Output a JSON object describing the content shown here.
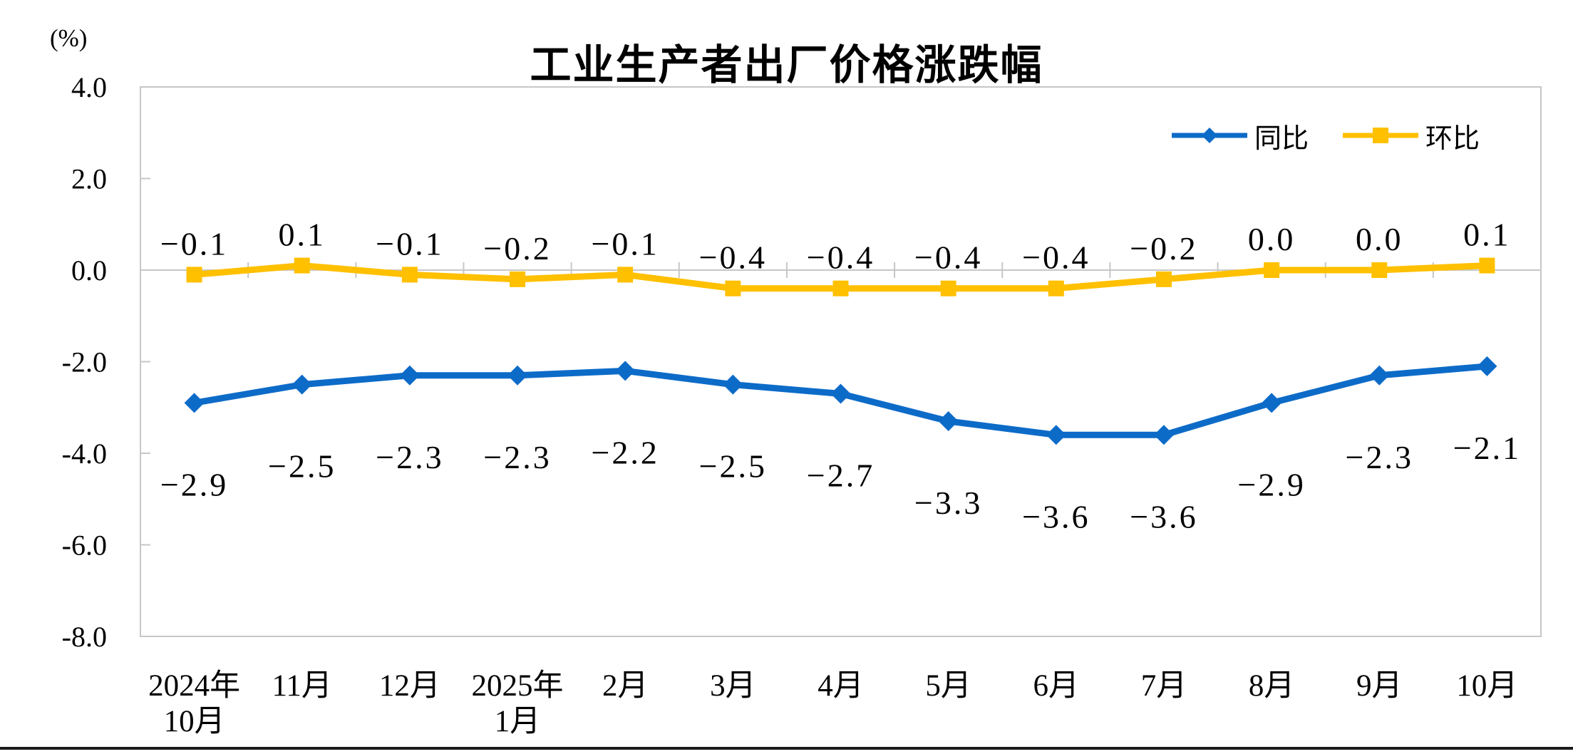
{
  "chart_data": {
    "type": "line",
    "title": "工业生产者出厂价格涨跌幅",
    "unit_label": "(%)",
    "categories": [
      "2024年\n10月",
      "11月",
      "12月",
      "2025年\n1月",
      "2月",
      "3月",
      "4月",
      "5月",
      "6月",
      "7月",
      "8月",
      "9月",
      "10月"
    ],
    "series": [
      {
        "id": "yoy",
        "name": "同比",
        "marker": "diamond",
        "color": "#0D6BC8",
        "label_position": "below",
        "values": [
          -2.9,
          -2.5,
          -2.3,
          -2.3,
          -2.2,
          -2.5,
          -2.7,
          -3.3,
          -3.6,
          -3.6,
          -2.9,
          -2.3,
          -2.1
        ],
        "labels": [
          "-2.9",
          "-2.5",
          "-2.3",
          "-2.3",
          "-2.2",
          "-2.5",
          "-2.7",
          "-3.3",
          "-3.6",
          "-3.6",
          "-2.9",
          "-2.3",
          "-2.1"
        ]
      },
      {
        "id": "mom",
        "name": "环比",
        "marker": "square",
        "color": "#FFC000",
        "label_position": "above",
        "values": [
          -0.1,
          0.1,
          -0.1,
          -0.2,
          -0.1,
          -0.4,
          -0.4,
          -0.4,
          -0.4,
          -0.2,
          0.0,
          0.0,
          0.1
        ],
        "labels": [
          "-0.1",
          "0.1",
          "-0.1",
          "-0.2",
          "-0.1",
          "-0.4",
          "-0.4",
          "-0.4",
          "-0.4",
          "-0.2",
          "0.0",
          "0.0",
          "0.1"
        ]
      }
    ],
    "y_axis": {
      "min": -8.0,
      "max": 4.0,
      "tick_step": 2.0,
      "tick_labels": [
        "4.0",
        "2.0",
        "0.0",
        "-2.0",
        "-4.0",
        "-6.0",
        "-8.0"
      ]
    },
    "legend": {
      "position": "top-right"
    },
    "grid": false,
    "colors": {
      "axis": "#C7C7C7",
      "text": "#000000",
      "background": "#FFFFFF",
      "bottom_rule": "#1A1A1A"
    }
  }
}
